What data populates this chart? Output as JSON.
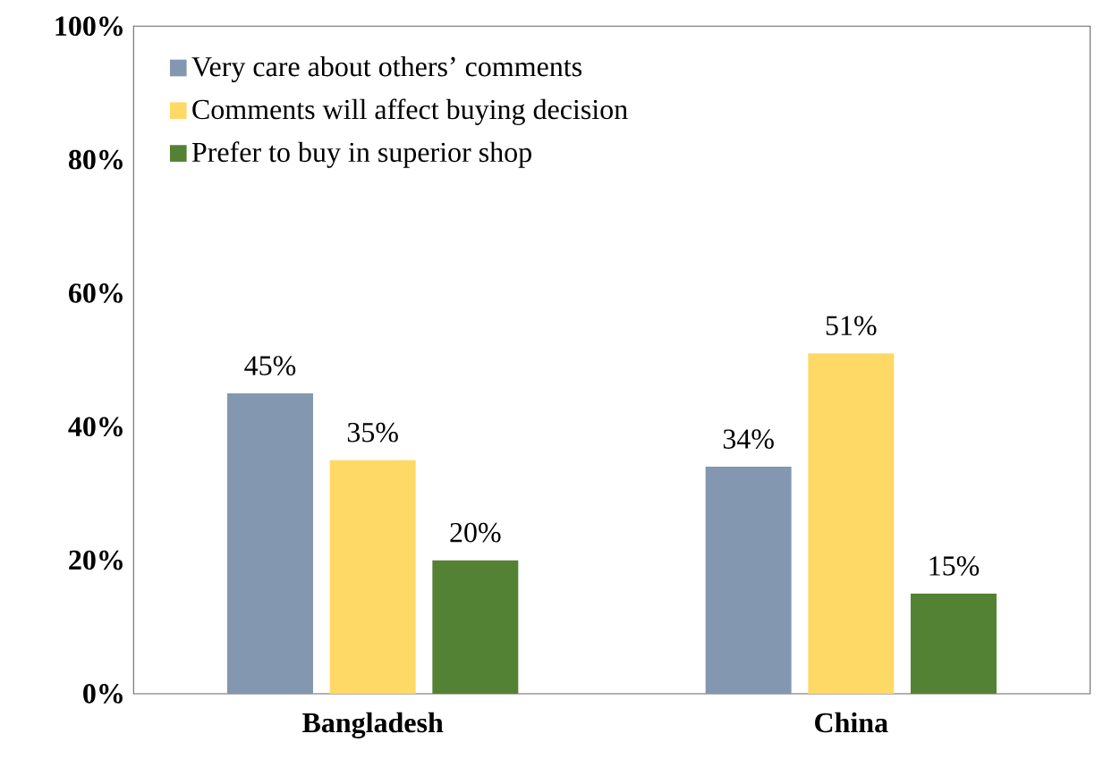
{
  "chart_data": {
    "type": "bar",
    "categories": [
      "Bangladesh",
      "China"
    ],
    "series": [
      {
        "name": "Very care about others’ comments",
        "color": "#8497b0",
        "values": [
          45,
          34
        ],
        "value_labels": [
          "45%",
          "34%"
        ]
      },
      {
        "name": "Comments will affect buying decision",
        "color": "#ffd966",
        "values": [
          35,
          51
        ],
        "value_labels": [
          "35%",
          "51%"
        ]
      },
      {
        "name": "Prefer to buy in superior shop",
        "color": "#548235",
        "values": [
          20,
          15
        ],
        "value_labels": [
          "20%",
          "15%"
        ]
      }
    ],
    "ylim": [
      0,
      100
    ],
    "yticks": [
      {
        "value": 0,
        "label": "0%"
      },
      {
        "value": 20,
        "label": "20%"
      },
      {
        "value": 40,
        "label": "40%"
      },
      {
        "value": 60,
        "label": "60%"
      },
      {
        "value": 80,
        "label": "80%"
      },
      {
        "value": 100,
        "label": "100%"
      }
    ],
    "grid": false,
    "legend": "top left"
  }
}
